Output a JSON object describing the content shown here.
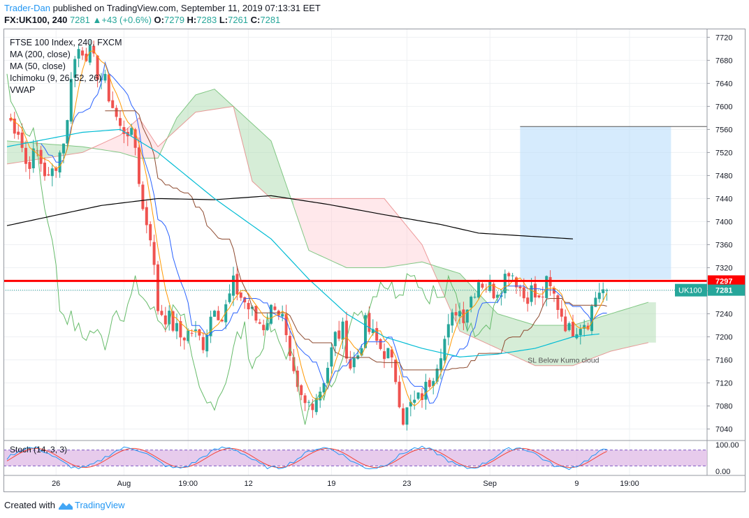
{
  "header": {
    "author": "Trader-Dan",
    "published_text": " published on TradingView.com, September 11, 2019 07:13:31 EET"
  },
  "quote": {
    "symbol": "FX:UK100, 240",
    "price": "7281",
    "change": "+43 (+0.6%)",
    "o_label": "O:",
    "o": "7279",
    "h_label": "H:",
    "h": "7283",
    "l_label": "L:",
    "l": "7261",
    "c_label": "C:",
    "c": "7281"
  },
  "legend": {
    "title": "FTSE 100 Index, 240, FXCM",
    "items": [
      "MA (200, close)",
      "MA (50, close)",
      "Ichimoku (9, 26, 52, 26)",
      "VWAP"
    ]
  },
  "stoch_label": "Stoch (14, 3, 3)",
  "footer": {
    "created_with": "Created with",
    "brand": "TradingView"
  },
  "colors": {
    "up": "#26a69a",
    "down": "#ef5350",
    "ma200": "#000000",
    "ma50": "#00bcd4",
    "resistance": "#ff0000",
    "cloud_bull": "#a5d6a7",
    "cloud_bear": "#ffcdd2",
    "target_box": "#bbdefb",
    "stoch_k": "#2196f3",
    "stoch_d": "#f44336",
    "stoch_band": "#e1bee7"
  },
  "chart_data": {
    "type": "candlestick",
    "price_axis": {
      "min": 7020,
      "max": 7735,
      "ticks": [
        7040,
        7080,
        7120,
        7160,
        7200,
        7240,
        7280,
        7320,
        7360,
        7400,
        7440,
        7480,
        7520,
        7560,
        7600,
        7640,
        7680,
        7720
      ]
    },
    "stoch_axis": {
      "min": 0,
      "max": 100,
      "ticks": [
        "100.00",
        "0.00"
      ],
      "bands": [
        80,
        20
      ]
    },
    "time_labels": [
      "26",
      "Aug",
      "19:00",
      "12",
      "19",
      "23",
      "Sep",
      "9",
      "19:00"
    ],
    "time_label_bars": [
      13,
      31,
      48,
      64,
      86,
      106,
      128,
      151,
      165
    ],
    "bar_count": 160,
    "last_price": {
      "value": 7281,
      "label": "7281",
      "name": "UK100"
    },
    "resistance": {
      "value": 7297,
      "label": "7297"
    },
    "target_box": {
      "from_bar": 136,
      "to": 176,
      "low": 7300,
      "high": 7565
    },
    "annotation": {
      "text": "SL Below Kumo cloud",
      "bar": 138,
      "price": 7160
    },
    "keypoints": [
      [
        0,
        7580
      ],
      [
        3,
        7560
      ],
      [
        5,
        7500
      ],
      [
        8,
        7520
      ],
      [
        11,
        7470
      ],
      [
        14,
        7520
      ],
      [
        16,
        7570
      ],
      [
        17,
        7660
      ],
      [
        19,
        7700
      ],
      [
        20,
        7700
      ],
      [
        22,
        7690
      ],
      [
        24,
        7660
      ],
      [
        26,
        7640
      ],
      [
        28,
        7600
      ],
      [
        30,
        7560
      ],
      [
        32,
        7560
      ],
      [
        34,
        7530
      ],
      [
        36,
        7420
      ],
      [
        38,
        7380
      ],
      [
        40,
        7250
      ],
      [
        43,
        7230
      ],
      [
        46,
        7200
      ],
      [
        49,
        7210
      ],
      [
        52,
        7190
      ],
      [
        55,
        7260
      ],
      [
        57,
        7230
      ],
      [
        60,
        7290
      ],
      [
        62,
        7270
      ],
      [
        64,
        7250
      ],
      [
        66,
        7230
      ],
      [
        68,
        7220
      ],
      [
        71,
        7260
      ],
      [
        73,
        7230
      ],
      [
        75,
        7150
      ],
      [
        77,
        7100
      ],
      [
        79,
        7080
      ],
      [
        81,
        7090
      ],
      [
        83,
        7110
      ],
      [
        85,
        7150
      ],
      [
        87,
        7200
      ],
      [
        89,
        7210
      ],
      [
        91,
        7150
      ],
      [
        93,
        7170
      ],
      [
        95,
        7220
      ],
      [
        97,
        7200
      ],
      [
        99,
        7180
      ],
      [
        101,
        7170
      ],
      [
        103,
        7130
      ],
      [
        105,
        7060
      ],
      [
        107,
        7080
      ],
      [
        109,
        7090
      ],
      [
        111,
        7110
      ],
      [
        113,
        7140
      ],
      [
        115,
        7180
      ],
      [
        117,
        7210
      ],
      [
        119,
        7250
      ],
      [
        121,
        7240
      ],
      [
        123,
        7270
      ],
      [
        125,
        7300
      ],
      [
        127,
        7290
      ],
      [
        129,
        7280
      ],
      [
        131,
        7290
      ],
      [
        133,
        7320
      ],
      [
        135,
        7300
      ],
      [
        137,
        7270
      ],
      [
        139,
        7280
      ],
      [
        141,
        7260
      ],
      [
        143,
        7290
      ],
      [
        145,
        7270
      ],
      [
        147,
        7240
      ],
      [
        149,
        7210
      ],
      [
        152,
        7225
      ],
      [
        154,
        7230
      ],
      [
        156,
        7270
      ],
      [
        157,
        7281
      ]
    ],
    "ma200": [
      [
        0,
        7393
      ],
      [
        25,
        7428
      ],
      [
        40,
        7440
      ],
      [
        55,
        7438
      ],
      [
        70,
        7445
      ],
      [
        85,
        7430
      ],
      [
        100,
        7412
      ],
      [
        115,
        7395
      ],
      [
        125,
        7380
      ],
      [
        140,
        7374
      ],
      [
        150,
        7370
      ]
    ],
    "ma50": [
      [
        0,
        7530
      ],
      [
        20,
        7555
      ],
      [
        30,
        7560
      ],
      [
        40,
        7520
      ],
      [
        55,
        7440
      ],
      [
        70,
        7370
      ],
      [
        80,
        7300
      ],
      [
        90,
        7240
      ],
      [
        100,
        7200
      ],
      [
        110,
        7180
      ],
      [
        120,
        7165
      ],
      [
        130,
        7170
      ],
      [
        140,
        7180
      ],
      [
        150,
        7200
      ],
      [
        157,
        7205
      ]
    ],
    "cloud_span_a": [
      [
        0,
        7540
      ],
      [
        20,
        7530
      ],
      [
        30,
        7520
      ],
      [
        35,
        7510
      ],
      [
        40,
        7510
      ],
      [
        45,
        7580
      ],
      [
        50,
        7620
      ],
      [
        55,
        7630
      ],
      [
        60,
        7600
      ],
      [
        70,
        7540
      ],
      [
        80,
        7350
      ],
      [
        90,
        7320
      ],
      [
        100,
        7320
      ],
      [
        110,
        7330
      ],
      [
        120,
        7310
      ],
      [
        130,
        7240
      ],
      [
        140,
        7220
      ],
      [
        150,
        7220
      ],
      [
        160,
        7240
      ],
      [
        170,
        7260
      ]
    ],
    "cloud_span_b": [
      [
        0,
        7500
      ],
      [
        20,
        7520
      ],
      [
        30,
        7550
      ],
      [
        35,
        7580
      ],
      [
        40,
        7530
      ],
      [
        45,
        7560
      ],
      [
        50,
        7590
      ],
      [
        60,
        7600
      ],
      [
        65,
        7470
      ],
      [
        70,
        7440
      ],
      [
        80,
        7440
      ],
      [
        90,
        7440
      ],
      [
        100,
        7440
      ],
      [
        110,
        7360
      ],
      [
        120,
        7210
      ],
      [
        130,
        7180
      ],
      [
        140,
        7150
      ],
      [
        150,
        7150
      ],
      [
        160,
        7175
      ],
      [
        170,
        7190
      ]
    ]
  }
}
